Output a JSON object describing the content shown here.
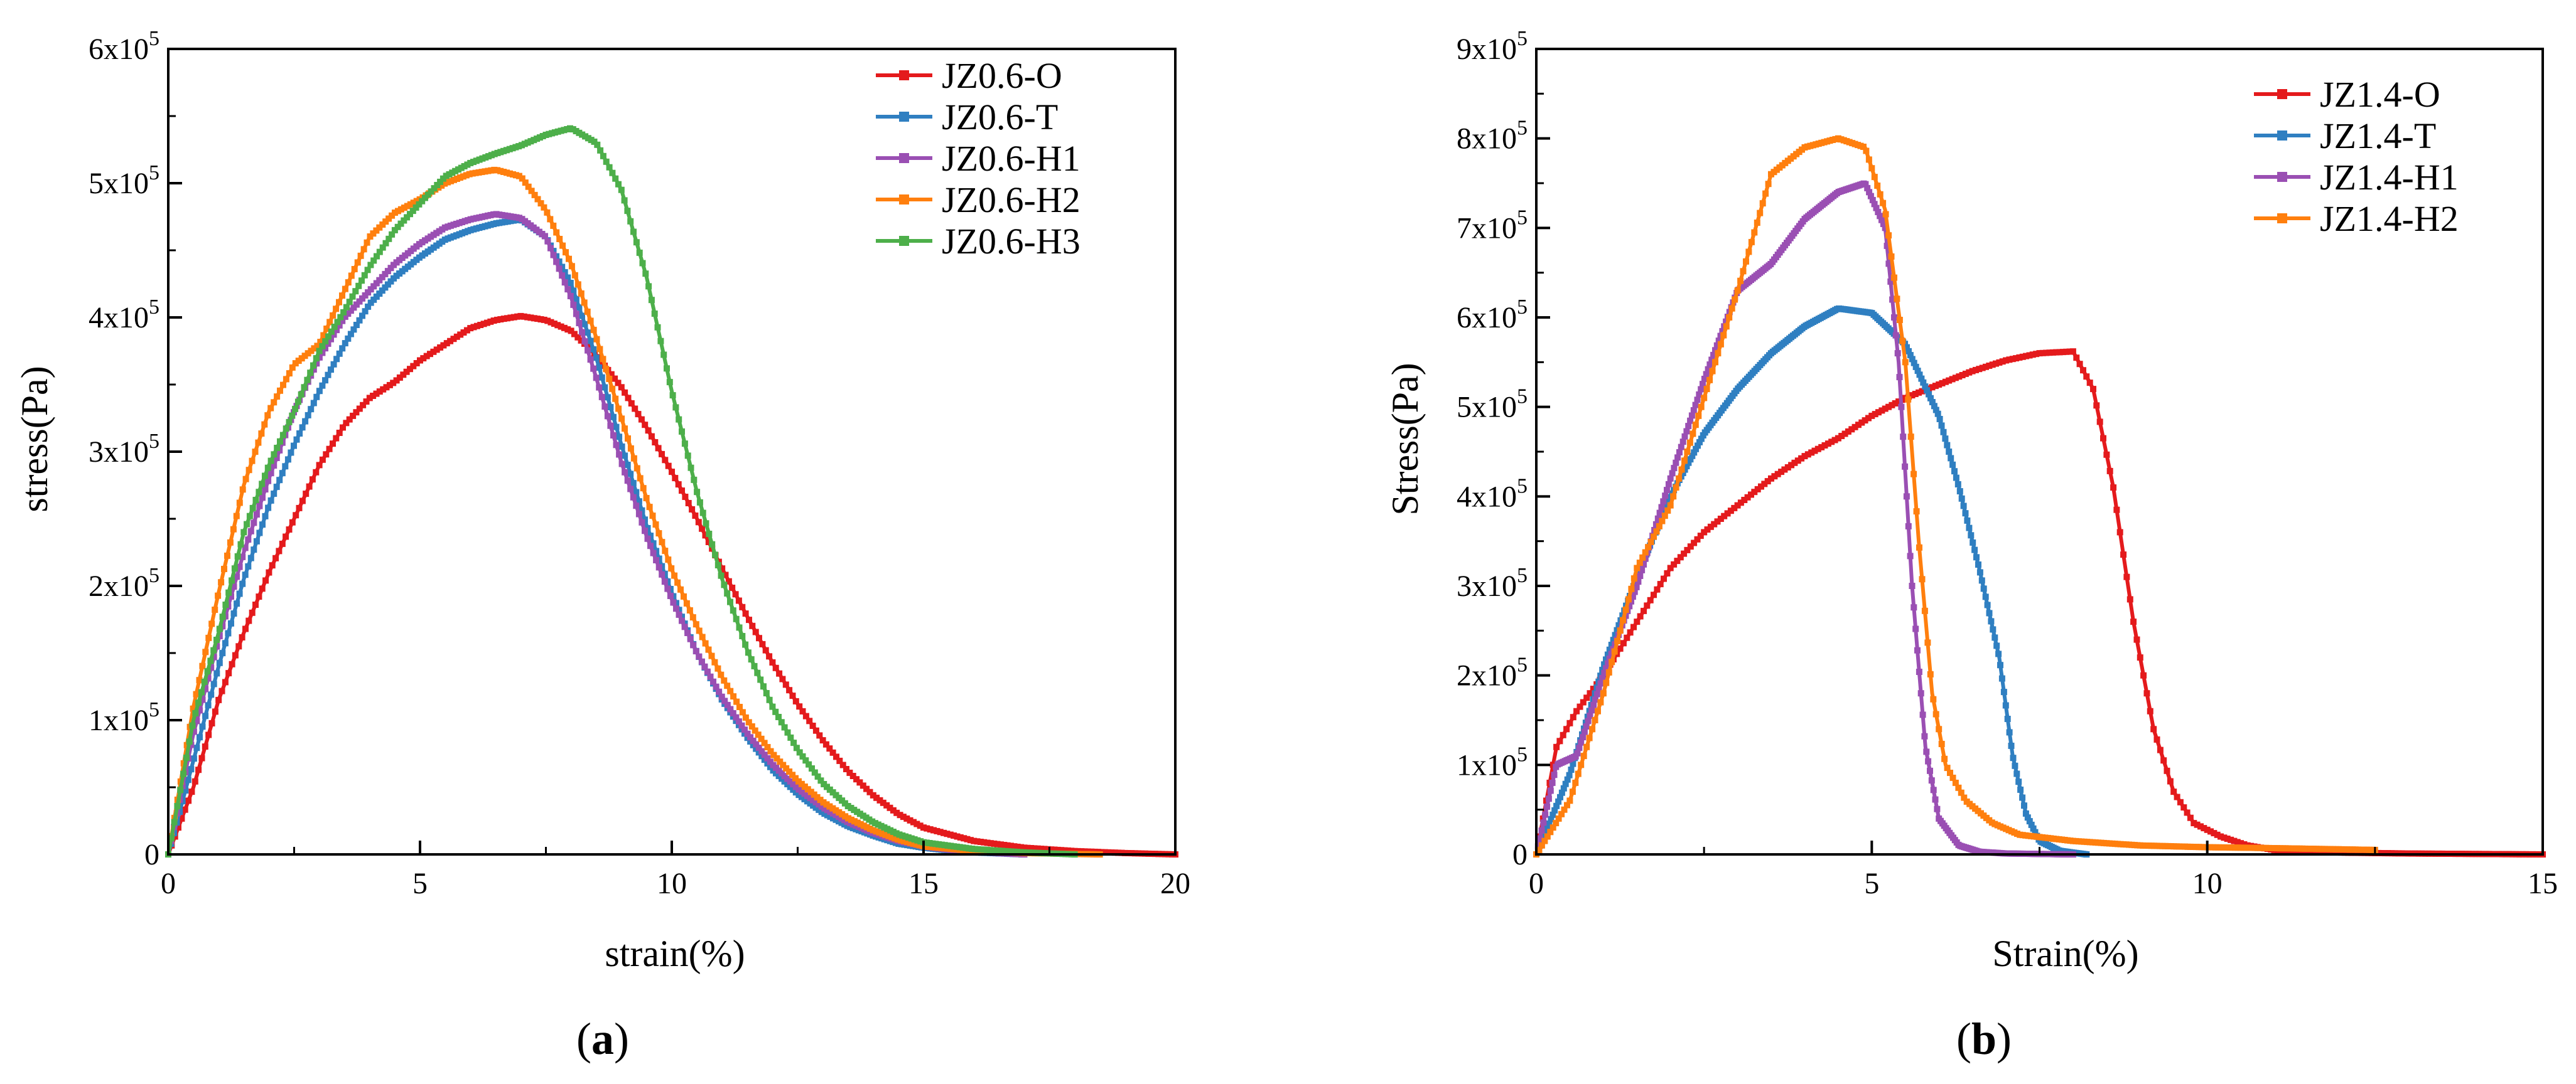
{
  "chart_data": [
    {
      "type": "line",
      "panel_label": "a",
      "xlabel": "strain(%)",
      "ylabel": "stress(Pa)",
      "xlim": [
        0,
        20
      ],
      "ylim": [
        0,
        600000
      ],
      "xticks": [
        0,
        5,
        10,
        15,
        20
      ],
      "xtick_labels": [
        "0",
        "5",
        "10",
        "15",
        "20"
      ],
      "yticks": [
        0,
        100000,
        200000,
        300000,
        400000,
        500000,
        600000
      ],
      "ytick_labels": [
        {
          "base": "0",
          "exp": ""
        },
        {
          "base": "1x10",
          "exp": "5"
        },
        {
          "base": "2x10",
          "exp": "5"
        },
        {
          "base": "3x10",
          "exp": "5"
        },
        {
          "base": "4x10",
          "exp": "5"
        },
        {
          "base": "5x10",
          "exp": "5"
        },
        {
          "base": "6x10",
          "exp": "5"
        }
      ],
      "legend_position": "top-right",
      "series": [
        {
          "name": "JZ0.6-O",
          "color": "#e41a1c",
          "x": [
            0,
            0.5,
            1,
            1.5,
            2,
            2.5,
            3,
            3.5,
            4,
            4.5,
            5,
            5.5,
            6,
            6.5,
            7,
            7.5,
            8,
            8.5,
            9,
            9.5,
            10,
            10.5,
            11,
            11.5,
            12,
            12.5,
            13,
            13.5,
            14,
            14.5,
            15,
            16,
            17,
            18,
            19,
            20
          ],
          "y": [
            0,
            50000,
            115000,
            165000,
            210000,
            250000,
            290000,
            320000,
            340000,
            352000,
            368000,
            380000,
            392000,
            398000,
            401000,
            398000,
            390000,
            372000,
            348000,
            318000,
            285000,
            250000,
            213000,
            177000,
            143000,
            112000,
            85000,
            62000,
            44000,
            30000,
            20000,
            10000,
            5000,
            2500,
            1000,
            0
          ]
        },
        {
          "name": "JZ0.6-T",
          "color": "#2f7fc1",
          "x": [
            0,
            0.5,
            1,
            1.5,
            2,
            2.5,
            3,
            3.5,
            4,
            4.5,
            5,
            5.5,
            6,
            6.5,
            7,
            7.5,
            8,
            8.5,
            9,
            9.5,
            10,
            10.5,
            11,
            11.5,
            12,
            12.5,
            13,
            13.5,
            14,
            14.5,
            15,
            15.5,
            16,
            17
          ],
          "y": [
            0,
            70000,
            140000,
            205000,
            260000,
            305000,
            345000,
            380000,
            410000,
            430000,
            445000,
            458000,
            465000,
            470000,
            473000,
            460000,
            425000,
            370000,
            305000,
            245000,
            195000,
            150000,
            115000,
            87000,
            63000,
            45000,
            31000,
            21000,
            14000,
            8000,
            5000,
            3000,
            1500,
            0
          ]
        },
        {
          "name": "JZ0.6-H1",
          "color": "#9a4fb3",
          "x": [
            0,
            0.5,
            1,
            1.5,
            2,
            2.5,
            3,
            3.5,
            4,
            4.5,
            5,
            5.5,
            6,
            6.5,
            7,
            7.5,
            8,
            8.5,
            9,
            9.5,
            10,
            10.5,
            11,
            11.5,
            12,
            12.5,
            13,
            13.5,
            14,
            14.5,
            15,
            15.5,
            16,
            17
          ],
          "y": [
            0,
            90000,
            160000,
            225000,
            280000,
            330000,
            370000,
            400000,
            420000,
            440000,
            455000,
            467000,
            473000,
            477000,
            474000,
            460000,
            415000,
            355000,
            292000,
            237000,
            190000,
            150000,
            117000,
            90000,
            67000,
            49000,
            35000,
            24000,
            16000,
            10000,
            6000,
            3500,
            2000,
            0
          ]
        },
        {
          "name": "JZ0.6-H2",
          "color": "#ff7f0e",
          "x": [
            0,
            0.5,
            1,
            1.5,
            2,
            2.5,
            3,
            3.5,
            4,
            4.5,
            5,
            5.5,
            6,
            6.5,
            7,
            7.5,
            8,
            8.5,
            9,
            9.5,
            10,
            10.5,
            11,
            11.5,
            12,
            12.5,
            13,
            13.5,
            14,
            14.5,
            15,
            16,
            17,
            18.5
          ],
          "y": [
            0,
            110000,
            195000,
            275000,
            330000,
            365000,
            380000,
            420000,
            460000,
            478000,
            488000,
            500000,
            507000,
            510000,
            505000,
            480000,
            440000,
            385000,
            325000,
            265000,
            212000,
            170000,
            132000,
            100000,
            75000,
            55000,
            39000,
            27000,
            18000,
            11000,
            6000,
            2500,
            1000,
            0
          ]
        },
        {
          "name": "JZ0.6-H3",
          "color": "#4daf4a",
          "x": [
            0,
            0.5,
            1,
            1.5,
            2,
            2.5,
            3,
            3.5,
            4,
            4.5,
            5,
            5.5,
            6,
            6.5,
            7,
            7.5,
            8,
            8.5,
            9,
            9.5,
            10,
            10.5,
            11,
            11.5,
            12,
            12.5,
            13,
            13.5,
            14,
            14.5,
            15,
            16,
            17,
            18
          ],
          "y": [
            0,
            100000,
            165000,
            240000,
            290000,
            330000,
            375000,
            405000,
            438000,
            465000,
            485000,
            505000,
            515000,
            522000,
            528000,
            536000,
            541000,
            530000,
            495000,
            430000,
            345000,
            270000,
            205000,
            152000,
            110000,
            78000,
            53000,
            36000,
            24000,
            15000,
            9000,
            4000,
            1500,
            0
          ]
        }
      ]
    },
    {
      "type": "line",
      "panel_label": "b",
      "xlabel": "Strain(%)",
      "ylabel": "Stress(Pa)",
      "xlim": [
        0,
        15
      ],
      "ylim": [
        0,
        900000
      ],
      "xticks": [
        0,
        5,
        10,
        15
      ],
      "xtick_labels": [
        "0",
        "5",
        "10",
        "15"
      ],
      "yticks": [
        0,
        100000,
        200000,
        300000,
        400000,
        500000,
        600000,
        700000,
        800000,
        900000
      ],
      "ytick_labels": [
        {
          "base": "0",
          "exp": ""
        },
        {
          "base": "1x10",
          "exp": "5"
        },
        {
          "base": "2x10",
          "exp": "5"
        },
        {
          "base": "3x10",
          "exp": "5"
        },
        {
          "base": "4x10",
          "exp": "5"
        },
        {
          "base": "5x10",
          "exp": "5"
        },
        {
          "base": "6x10",
          "exp": "5"
        },
        {
          "base": "7x10",
          "exp": "5"
        },
        {
          "base": "8x10",
          "exp": "5"
        },
        {
          "base": "9x10",
          "exp": "5"
        }
      ],
      "legend_position": "top-right",
      "series": [
        {
          "name": "JZ1.4-O",
          "color": "#e41a1c",
          "x": [
            0,
            0.3,
            0.6,
            1,
            1.5,
            2,
            2.5,
            3,
            3.5,
            4,
            4.5,
            5,
            5.5,
            6,
            6.5,
            7,
            7.5,
            8,
            8.3,
            8.6,
            8.9,
            9.2,
            9.5,
            9.8,
            10.2,
            10.6,
            11,
            12,
            13,
            14,
            15
          ],
          "y": [
            0,
            120000,
            160000,
            200000,
            260000,
            320000,
            360000,
            390000,
            420000,
            445000,
            465000,
            490000,
            510000,
            525000,
            540000,
            552000,
            560000,
            562000,
            520000,
            410000,
            260000,
            140000,
            70000,
            35000,
            20000,
            10000,
            5000,
            2000,
            1000,
            500,
            0
          ]
        },
        {
          "name": "JZ1.4-T",
          "color": "#2f7fc1",
          "x": [
            0,
            0.5,
            1,
            1.5,
            2,
            2.5,
            3,
            3.5,
            4,
            4.5,
            5,
            5.5,
            6,
            6.3,
            6.6,
            6.9,
            7.1,
            7.3,
            7.5,
            7.8,
            8.2
          ],
          "y": [
            0,
            90000,
            210000,
            310000,
            400000,
            470000,
            520000,
            560000,
            590000,
            610000,
            605000,
            570000,
            490000,
            410000,
            320000,
            220000,
            110000,
            45000,
            15000,
            4000,
            0
          ]
        },
        {
          "name": "JZ1.4-H1",
          "color": "#9a4fb3",
          "x": [
            0,
            0.3,
            0.6,
            1,
            1.5,
            2,
            2.5,
            3,
            3.5,
            4,
            4.5,
            4.9,
            5.2,
            5.4,
            5.6,
            5.8,
            6,
            6.3,
            6.6,
            7,
            8
          ],
          "y": [
            0,
            100000,
            110000,
            200000,
            300000,
            420000,
            530000,
            630000,
            660000,
            710000,
            740000,
            750000,
            700000,
            550000,
            300000,
            120000,
            40000,
            10000,
            3000,
            1000,
            0
          ]
        },
        {
          "name": "JZ1.4-H2",
          "color": "#ff7f0e",
          "x": [
            0,
            0.5,
            1,
            1.5,
            2,
            2.5,
            3,
            3.5,
            4,
            4.5,
            4.9,
            5.2,
            5.5,
            5.7,
            5.9,
            6.1,
            6.4,
            6.8,
            7.2,
            8,
            9,
            10,
            11,
            12.5
          ],
          "y": [
            0,
            60000,
            180000,
            320000,
            390000,
            510000,
            630000,
            760000,
            790000,
            800000,
            790000,
            720000,
            550000,
            350000,
            180000,
            100000,
            60000,
            35000,
            22000,
            15000,
            10000,
            8000,
            7000,
            5000
          ]
        }
      ]
    }
  ],
  "captions": {
    "a": "a",
    "b": "b"
  }
}
